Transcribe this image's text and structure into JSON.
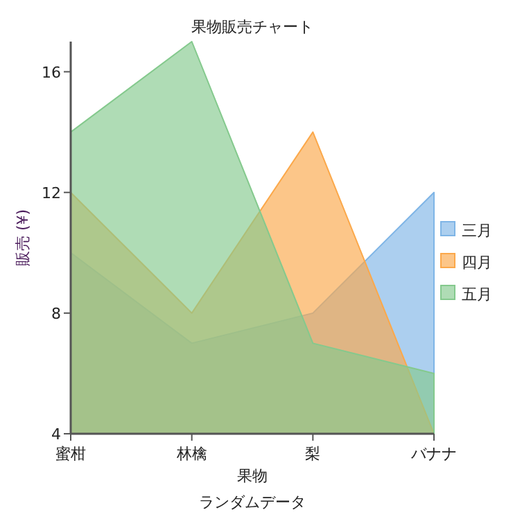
{
  "chart_data": {
    "type": "area",
    "title": "果物販売チャート",
    "xlabel": "果物",
    "ylabel": "販売 (¥)",
    "annotations": [
      "ランダムデータ"
    ],
    "categories": [
      "蜜柑",
      "林檎",
      "梨",
      "バナナ"
    ],
    "series": [
      {
        "name": "三月",
        "color": "#7fb5e6",
        "values": [
          10,
          7,
          8,
          12
        ]
      },
      {
        "name": "四月",
        "color": "#fba84a",
        "values": [
          12,
          8,
          14,
          4
        ]
      },
      {
        "name": "五月",
        "color": "#84c98d",
        "values": [
          14,
          17,
          7,
          6
        ]
      }
    ],
    "ylim": [
      4,
      17
    ],
    "yticks": [
      4,
      8,
      12,
      16
    ],
    "legend": "right"
  }
}
